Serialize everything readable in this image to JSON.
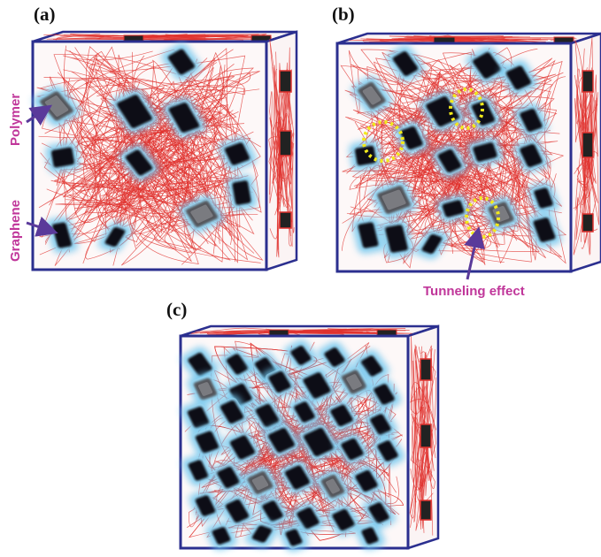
{
  "panels": {
    "a": {
      "label": "(a)",
      "flake_count": 14
    },
    "b": {
      "label": "(b)",
      "flake_count": 24
    },
    "c": {
      "label": "(c)",
      "flake_count": 40
    }
  },
  "annotations": {
    "polymer": "Polymer",
    "graphene": "Graphene",
    "tunneling": "Tunneling effect"
  },
  "colors": {
    "box_edge": "#2b2f8f",
    "polymer_chain": "#e0322e",
    "flake_core": "#0d0d14",
    "flake_glow": "#6fc6ee",
    "tunneling_ring": "#f2ea1b",
    "annotation_text": "#c0369a",
    "arrow": "#5a3a9a"
  }
}
